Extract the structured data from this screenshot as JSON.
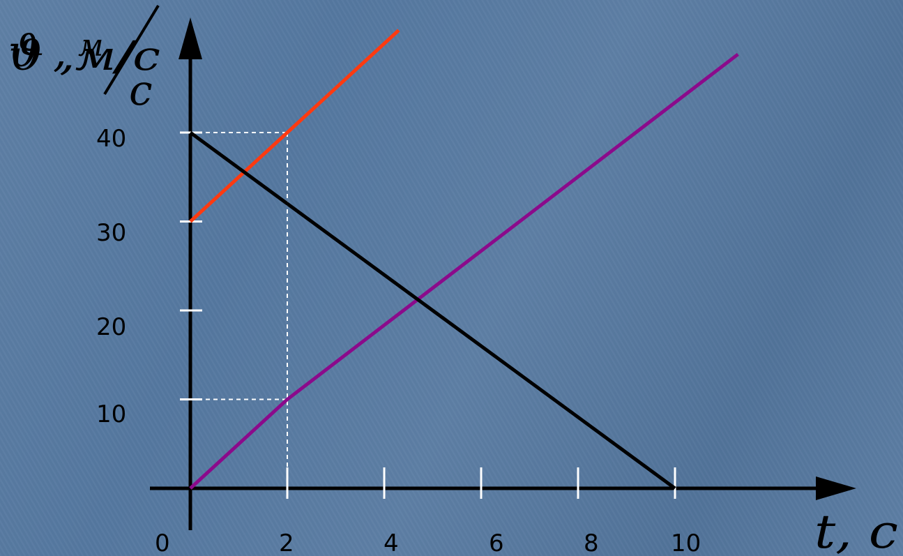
{
  "chart_data": {
    "type": "line",
    "title": "",
    "xlabel": "t, c",
    "ylabel": "ϑ ,м/с",
    "origin_label": "0",
    "xlim": [
      0,
      10.8
    ],
    "ylim": [
      0,
      42
    ],
    "x_ticks": [
      2,
      4,
      6,
      8,
      10
    ],
    "y_ticks": [
      10,
      20,
      30,
      40
    ],
    "x_tick_labels": [
      "2",
      "4",
      "6",
      "8",
      "10"
    ],
    "y_tick_labels": [
      "10",
      "20",
      "30",
      "40"
    ],
    "grid": false,
    "series": [
      {
        "color": "#ff3a10",
        "points": [
          [
            0,
            30
          ],
          [
            2,
            40
          ],
          [
            4.3,
            51.5
          ]
        ]
      },
      {
        "color": "#8b0a8b",
        "points": [
          [
            0,
            0
          ],
          [
            2,
            10
          ],
          [
            11.3,
            48.8
          ]
        ]
      },
      {
        "color": "#000000",
        "points": [
          [
            0,
            40
          ],
          [
            10,
            0
          ]
        ]
      }
    ],
    "guides": [
      {
        "from": [
          0,
          40
        ],
        "to": [
          2,
          40
        ]
      },
      {
        "from": [
          2,
          40
        ],
        "to": [
          2,
          0
        ]
      },
      {
        "from": [
          0,
          10
        ],
        "to": [
          2,
          10
        ]
      }
    ]
  }
}
